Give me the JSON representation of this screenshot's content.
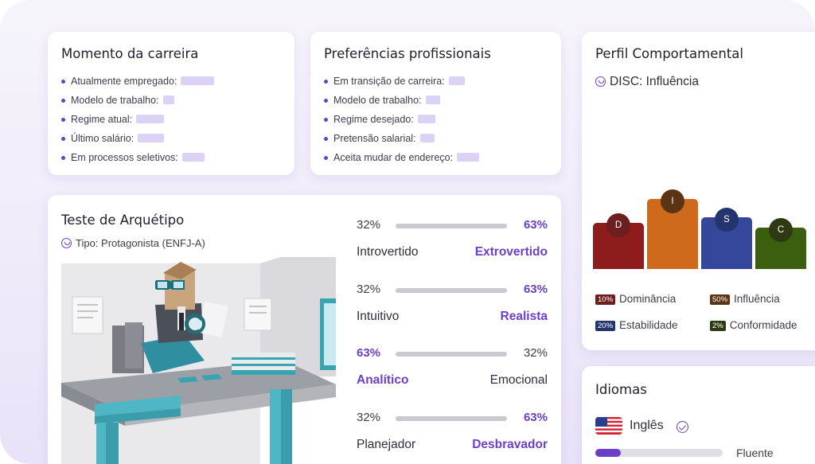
{
  "career": {
    "title": "Momento da carreira",
    "items": [
      "Atualmente empregado:",
      "Modelo de trabalho:",
      "Regime atual:",
      "Último salário:",
      "Em processos seletivos:"
    ]
  },
  "preferences": {
    "title": "Preferências profissionais",
    "items": [
      "Em transição de carreira:",
      "Modelo de trabalho:",
      "Regime desejado:",
      "Pretensão salarial:",
      "Aceita mudar de endereço:"
    ]
  },
  "behavior": {
    "title": "Perfil Comportamental",
    "disc_label": "DISC: Influência",
    "icon": "smile-icon",
    "chart_data": {
      "type": "bar",
      "categories": [
        "D",
        "I",
        "S",
        "C"
      ],
      "values": [
        10,
        50,
        20,
        2
      ],
      "colors": [
        "#8f1c1c",
        "#cf6a1d",
        "#35479a",
        "#3c5e0f"
      ],
      "badge_colors": [
        "#6d1f1f",
        "#5a3415",
        "#24356d",
        "#2e3a14"
      ],
      "legend": [
        {
          "badge": "10%",
          "label": "Dominância"
        },
        {
          "badge": "50%",
          "label": "Influência"
        },
        {
          "badge": "20%",
          "label": "Estabilidade"
        },
        {
          "badge": "2%",
          "label": "Conformidade"
        }
      ]
    }
  },
  "archetype": {
    "title": "Teste de Arquétipo",
    "type_label": "Tipo: Protagonista (ENFJ-A)",
    "traits": [
      {
        "left_pct": "32%",
        "right_pct": "63%",
        "left": "Introvertido",
        "right": "Extrovertido",
        "dominant": "right"
      },
      {
        "left_pct": "32%",
        "right_pct": "63%",
        "left": "Intuitivo",
        "right": "Realista",
        "dominant": "right"
      },
      {
        "left_pct": "63%",
        "right_pct": "32%",
        "left": "Analítico",
        "right": "Emocional",
        "dominant": "left"
      },
      {
        "left_pct": "32%",
        "right_pct": "63%",
        "left": "Planejador",
        "right": "Desbravador",
        "dominant": "right"
      }
    ]
  },
  "languages": {
    "title": "Idiomas",
    "items": [
      {
        "name": "Inglês",
        "level": "Fluente",
        "flag": "us-flag-icon",
        "verified_icon": "verified-icon",
        "progress": 0.2
      }
    ]
  },
  "colors": {
    "accent": "#6b3fc9",
    "placeholder": "#dcd2f6"
  }
}
